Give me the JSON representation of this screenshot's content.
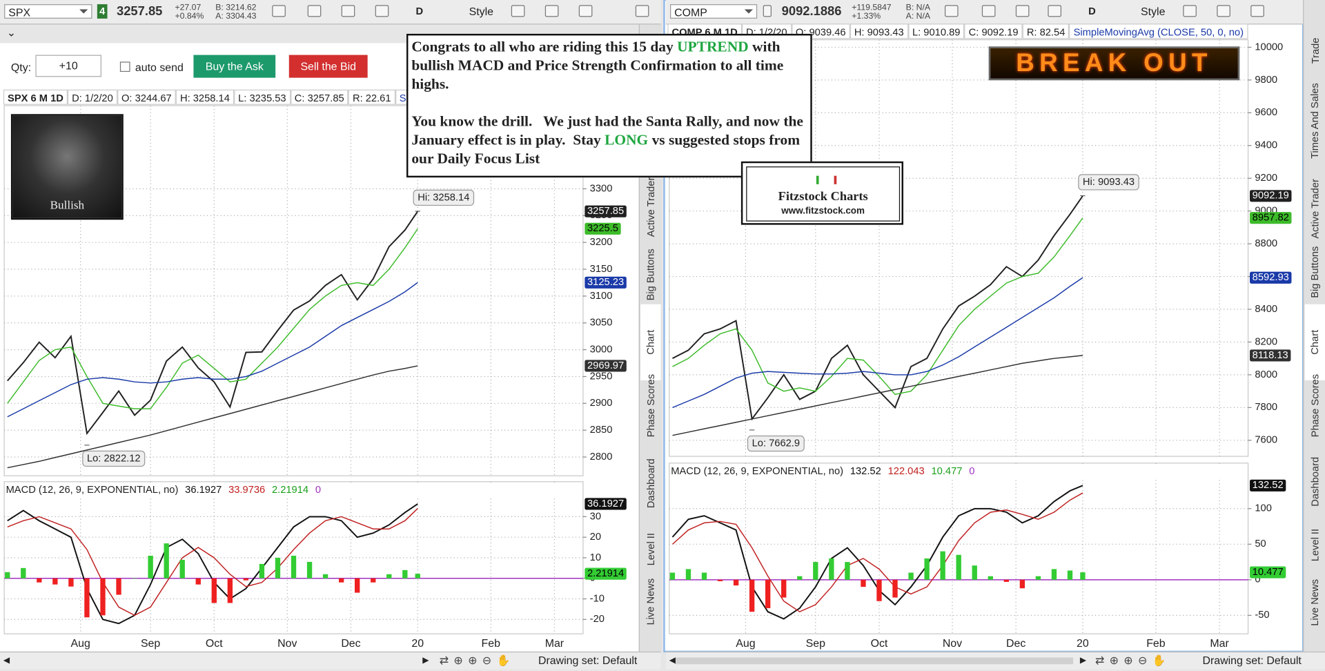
{
  "left": {
    "toolbar": {
      "symbol": "SPX",
      "link": "4",
      "last": "3257.85",
      "change": "+27.07",
      "change_pct": "+0.84%",
      "bid": "B: 3214.62",
      "ask": "A: 3304.43",
      "period": "D",
      "style": "Style"
    },
    "order": {
      "qty_label": "Qty:",
      "qty": "+10",
      "auto_send": "auto send",
      "buy": "Buy the Ask",
      "sell": "Sell the Bid"
    },
    "header": [
      "SPX 6 M 1D",
      "D: 1/2/20",
      "O: 3244.67",
      "H: 3258.14",
      "L: 3235.53",
      "C: 3257.85",
      "R: 22.61",
      "Simple"
    ],
    "badge": "Bullish",
    "status": "Drawing set: Default",
    "chart_data": [
      {
        "type": "line",
        "grid": true,
        "x": [
          -10,
          -5,
          0,
          5,
          10,
          15,
          20,
          25,
          30,
          35,
          40,
          45,
          50,
          55,
          60,
          65,
          70,
          75,
          80,
          85,
          90,
          95,
          100,
          105,
          110,
          115,
          119
        ],
        "xlim": [
          -11,
          171
        ],
        "xticks": [
          13,
          35,
          55,
          78,
          98,
          119,
          142,
          162
        ],
        "ylim": [
          2765,
          3455
        ],
        "yticks": [
          2800,
          2850,
          2900,
          2950,
          3000,
          3050,
          3100,
          3150,
          3200,
          3250,
          3300
        ],
        "series": [
          {
            "color": "#202020",
            "tag": true,
            "values": [
              2942,
              2976,
              3014,
              2985,
              3025,
              2844,
              2883,
              2923,
              2878,
              2906,
              2979,
              3005,
              2966,
              2940,
              2893,
              2995,
              2996,
              3036,
              3074,
              3091,
              3120,
              3140,
              3093,
              3132,
              3192,
              3223,
              3257.85
            ]
          },
          {
            "color": "#3dbb2a",
            "tag": true,
            "values": [
              2900,
              2940,
              2980,
              3000,
              3005,
              2950,
              2900,
              2895,
              2890,
              2890,
              2930,
              2975,
              2990,
              2965,
              2940,
              2945,
              2975,
              3005,
              3040,
              3075,
              3100,
              3120,
              3125,
              3120,
              3150,
              3190,
              3225.5
            ]
          },
          {
            "color": "#1a3aa8",
            "tag": true,
            "values": [
              2875,
              2890,
              2905,
              2920,
              2935,
              2945,
              2948,
              2945,
              2940,
              2938,
              2940,
              2945,
              2948,
              2945,
              2945,
              2950,
              2960,
              2975,
              2990,
              3005,
              3025,
              3045,
              3060,
              3075,
              3090,
              3108,
              3125.23
            ]
          },
          {
            "color": "#303030",
            "tag": true,
            "values": [
              2780,
              2786,
              2792,
              2799,
              2806,
              2813,
              2820,
              2827,
              2834,
              2841,
              2849,
              2857,
              2865,
              2873,
              2881,
              2889,
              2897,
              2905,
              2913,
              2921,
              2929,
              2937,
              2945,
              2953,
              2960,
              2965,
              2969.97
            ]
          }
        ],
        "marks": [
          {
            "label": "Hi: 3258.14",
            "value": 3258.14,
            "x": 119,
            "side": "above"
          },
          {
            "label": "Lo: 2822.12",
            "value": 2822.12,
            "x": 15,
            "side": "below"
          }
        ]
      },
      {
        "type": "macd",
        "grid": true,
        "title": "MACD (12, 26, 9, EXPONENTIAL, no)",
        "x": [
          -10,
          -5,
          0,
          5,
          10,
          15,
          20,
          25,
          30,
          35,
          40,
          45,
          50,
          55,
          60,
          65,
          70,
          75,
          80,
          85,
          90,
          95,
          100,
          105,
          110,
          115,
          119
        ],
        "xlim": [
          -11,
          171
        ],
        "xticks": [
          {
            "value": 13,
            "label": "Aug"
          },
          {
            "value": 35,
            "label": "Sep"
          },
          {
            "value": 55,
            "label": "Oct"
          },
          {
            "value": 78,
            "label": "Nov"
          },
          {
            "value": 98,
            "label": "Dec"
          },
          {
            "value": 119,
            "label": "20"
          },
          {
            "value": 142,
            "label": "Feb"
          },
          {
            "value": 162,
            "label": "Mar"
          }
        ],
        "ylim": [
          -27,
          47
        ],
        "yticks": [
          -20,
          -10,
          0,
          10,
          20,
          30
        ],
        "series": [
          {
            "color": "#111111",
            "tag": true,
            "values": [
              28,
              33,
              28,
              24,
              20,
              -5,
              -20,
              -22,
              -18,
              -3,
              15,
              19,
              12,
              -2,
              -10,
              -5,
              5,
              15,
              25,
              30,
              30,
              28,
              20,
              22,
              26,
              32,
              36.1927
            ]
          },
          {
            "color": "#c02020",
            "values": [
              25,
              28,
              30,
              27,
              24,
              14,
              -2,
              -14,
              -18,
              -14,
              -2,
              10,
              15,
              10,
              2,
              -4,
              -2,
              5,
              14,
              22,
              28,
              30,
              27,
              24,
              24,
              28,
              33.9736
            ]
          },
          {
            "type": "histogram",
            "color": "#33cc33",
            "neg_color": "#ee2020",
            "tag": true,
            "values": [
              3,
              5,
              -2,
              -3,
              -4,
              -19,
              -18,
              -8,
              0,
              11,
              17,
              9,
              -3,
              -12,
              -12,
              -1,
              7,
              10,
              11,
              8,
              2,
              -2,
              -7,
              -2,
              2,
              4,
              2.21914
            ]
          }
        ],
        "zero": 0,
        "zero_color": "#a030c0"
      }
    ]
  },
  "right": {
    "toolbar": {
      "symbol": "COMP",
      "last": "9092.1886",
      "change": "+119.5847",
      "change_pct": "+1.33%",
      "bid": "B: N/A",
      "ask": "A: N/A",
      "period": "D",
      "style": "Style"
    },
    "header": [
      "COMP 6 M 1D",
      "D: 1/2/20",
      "O: 9039.46",
      "H: 9093.43",
      "L: 9010.89",
      "C: 9092.19",
      "R: 82.54",
      "SimpleMovingAvg (CLOSE, 50, 0, no)"
    ],
    "status": "Drawing set: Default",
    "chart_data": [
      {
        "type": "line",
        "grid": true,
        "x": [
          -10,
          -5,
          0,
          5,
          10,
          15,
          20,
          25,
          30,
          35,
          40,
          45,
          50,
          55,
          60,
          65,
          70,
          75,
          80,
          85,
          90,
          95,
          100,
          105,
          110,
          115,
          119
        ],
        "xlim": [
          -11,
          171
        ],
        "xticks": [
          13,
          35,
          55,
          78,
          98,
          119,
          142,
          162
        ],
        "ylim": [
          7502,
          10046
        ],
        "yticks": [
          7600,
          7800,
          8000,
          8200,
          8400,
          8600,
          8800,
          9000,
          9200,
          9400,
          9600,
          9800,
          10000
        ],
        "series": [
          {
            "color": "#202020",
            "tag": true,
            "values": [
              8100,
              8150,
              8250,
              8280,
              8330,
              7730,
              7860,
              8000,
              7850,
              7900,
              8100,
              8180,
              8000,
              7900,
              7800,
              8050,
              8100,
              8280,
              8420,
              8480,
              8550,
              8660,
              8600,
              8700,
              8850,
              8980,
              9092.19
            ]
          },
          {
            "color": "#3dbb2a",
            "tag": true,
            "values": [
              8050,
              8100,
              8180,
              8250,
              8280,
              8150,
              7950,
              7900,
              7920,
              7900,
              7990,
              8100,
              8090,
              7990,
              7880,
              7900,
              8000,
              8150,
              8300,
              8400,
              8480,
              8560,
              8600,
              8620,
              8720,
              8850,
              8957.82
            ]
          },
          {
            "color": "#1a3aa8",
            "tag": true,
            "values": [
              7800,
              7840,
              7880,
              7930,
              7980,
              8010,
              8020,
              8015,
              8010,
              8005,
              8005,
              8010,
              8020,
              8010,
              8000,
              8000,
              8020,
              8060,
              8110,
              8170,
              8230,
              8290,
              8350,
              8410,
              8470,
              8540,
              8592.93
            ]
          },
          {
            "color": "#303030",
            "tag": true,
            "values": [
              7630,
              7650,
              7670,
              7690,
              7710,
              7730,
              7750,
              7770,
              7790,
              7810,
              7830,
              7850,
              7870,
              7890,
              7910,
              7930,
              7950,
              7970,
              7990,
              8010,
              8030,
              8050,
              8070,
              8085,
              8100,
              8110,
              8118.13
            ]
          }
        ],
        "marks": [
          {
            "label": "Hi: 9093.43",
            "value": 9093.43,
            "x": 119,
            "side": "above"
          },
          {
            "label": "Lo: 7662.9",
            "value": 7662.9,
            "x": 15,
            "side": "below"
          }
        ]
      },
      {
        "type": "macd",
        "grid": true,
        "title": "MACD (12, 26, 9, EXPONENTIAL, no)",
        "x": [
          -10,
          -5,
          0,
          5,
          10,
          15,
          20,
          25,
          30,
          35,
          40,
          45,
          50,
          55,
          60,
          65,
          70,
          75,
          80,
          85,
          90,
          95,
          100,
          105,
          110,
          115,
          119
        ],
        "xlim": [
          -11,
          171
        ],
        "xticks": [
          {
            "value": 13,
            "label": "Aug"
          },
          {
            "value": 35,
            "label": "Sep"
          },
          {
            "value": 55,
            "label": "Oct"
          },
          {
            "value": 78,
            "label": "Nov"
          },
          {
            "value": 98,
            "label": "Dec"
          },
          {
            "value": 119,
            "label": "20"
          },
          {
            "value": 142,
            "label": "Feb"
          },
          {
            "value": 162,
            "label": "Mar"
          }
        ],
        "ylim": [
          -76,
          164
        ],
        "yticks": [
          -50,
          0,
          50,
          100
        ],
        "series": [
          {
            "color": "#111111",
            "tag": true,
            "values": [
              60,
              85,
              90,
              80,
              70,
              -10,
              -45,
              -55,
              -40,
              -10,
              30,
              45,
              20,
              -15,
              -35,
              -10,
              20,
              60,
              90,
              100,
              100,
              95,
              80,
              90,
              110,
              125,
              132.52
            ]
          },
          {
            "color": "#c02020",
            "values": [
              50,
              70,
              80,
              82,
              78,
              45,
              5,
              -30,
              -45,
              -35,
              -10,
              20,
              30,
              15,
              -10,
              -20,
              -10,
              20,
              55,
              80,
              95,
              98,
              92,
              85,
              95,
              112,
              122.043
            ]
          },
          {
            "type": "histogram",
            "color": "#33cc33",
            "neg_color": "#ee2020",
            "tag": true,
            "values": [
              10,
              15,
              10,
              -2,
              -8,
              -45,
              -40,
              -25,
              5,
              25,
              30,
              25,
              -10,
              -30,
              -25,
              10,
              30,
              40,
              35,
              20,
              5,
              -3,
              -12,
              5,
              15,
              13,
              10.477
            ]
          }
        ],
        "zero": 0,
        "zero_color": "#a030c0"
      }
    ]
  },
  "note": {
    "p1": [
      "Congrats to all who are riding this 15 day ",
      "UPTREND",
      " with bullish MACD and Price Strength Confirmation to all time highs."
    ],
    "p2": [
      "You know the drill.   We just had the Santa Rally, and now the January effect is in play.  Stay ",
      "LONG",
      " vs suggested stops from our Daily Focus List"
    ]
  },
  "logo": {
    "title": "Fitzstock Charts",
    "url": "www.fitzstock.com"
  },
  "banner": "BREAK OUT",
  "tabs_left": [
    "Active Trader",
    "Big Buttons",
    "Chart",
    "Phase Scores",
    "Dashboard",
    "Level II",
    "Live News"
  ],
  "tabs_right": [
    "Trade",
    "Times And Sales",
    "Active Trader",
    "Big Buttons",
    "Chart",
    "Phase Scores",
    "Dashboard",
    "Level II",
    "Live News"
  ]
}
